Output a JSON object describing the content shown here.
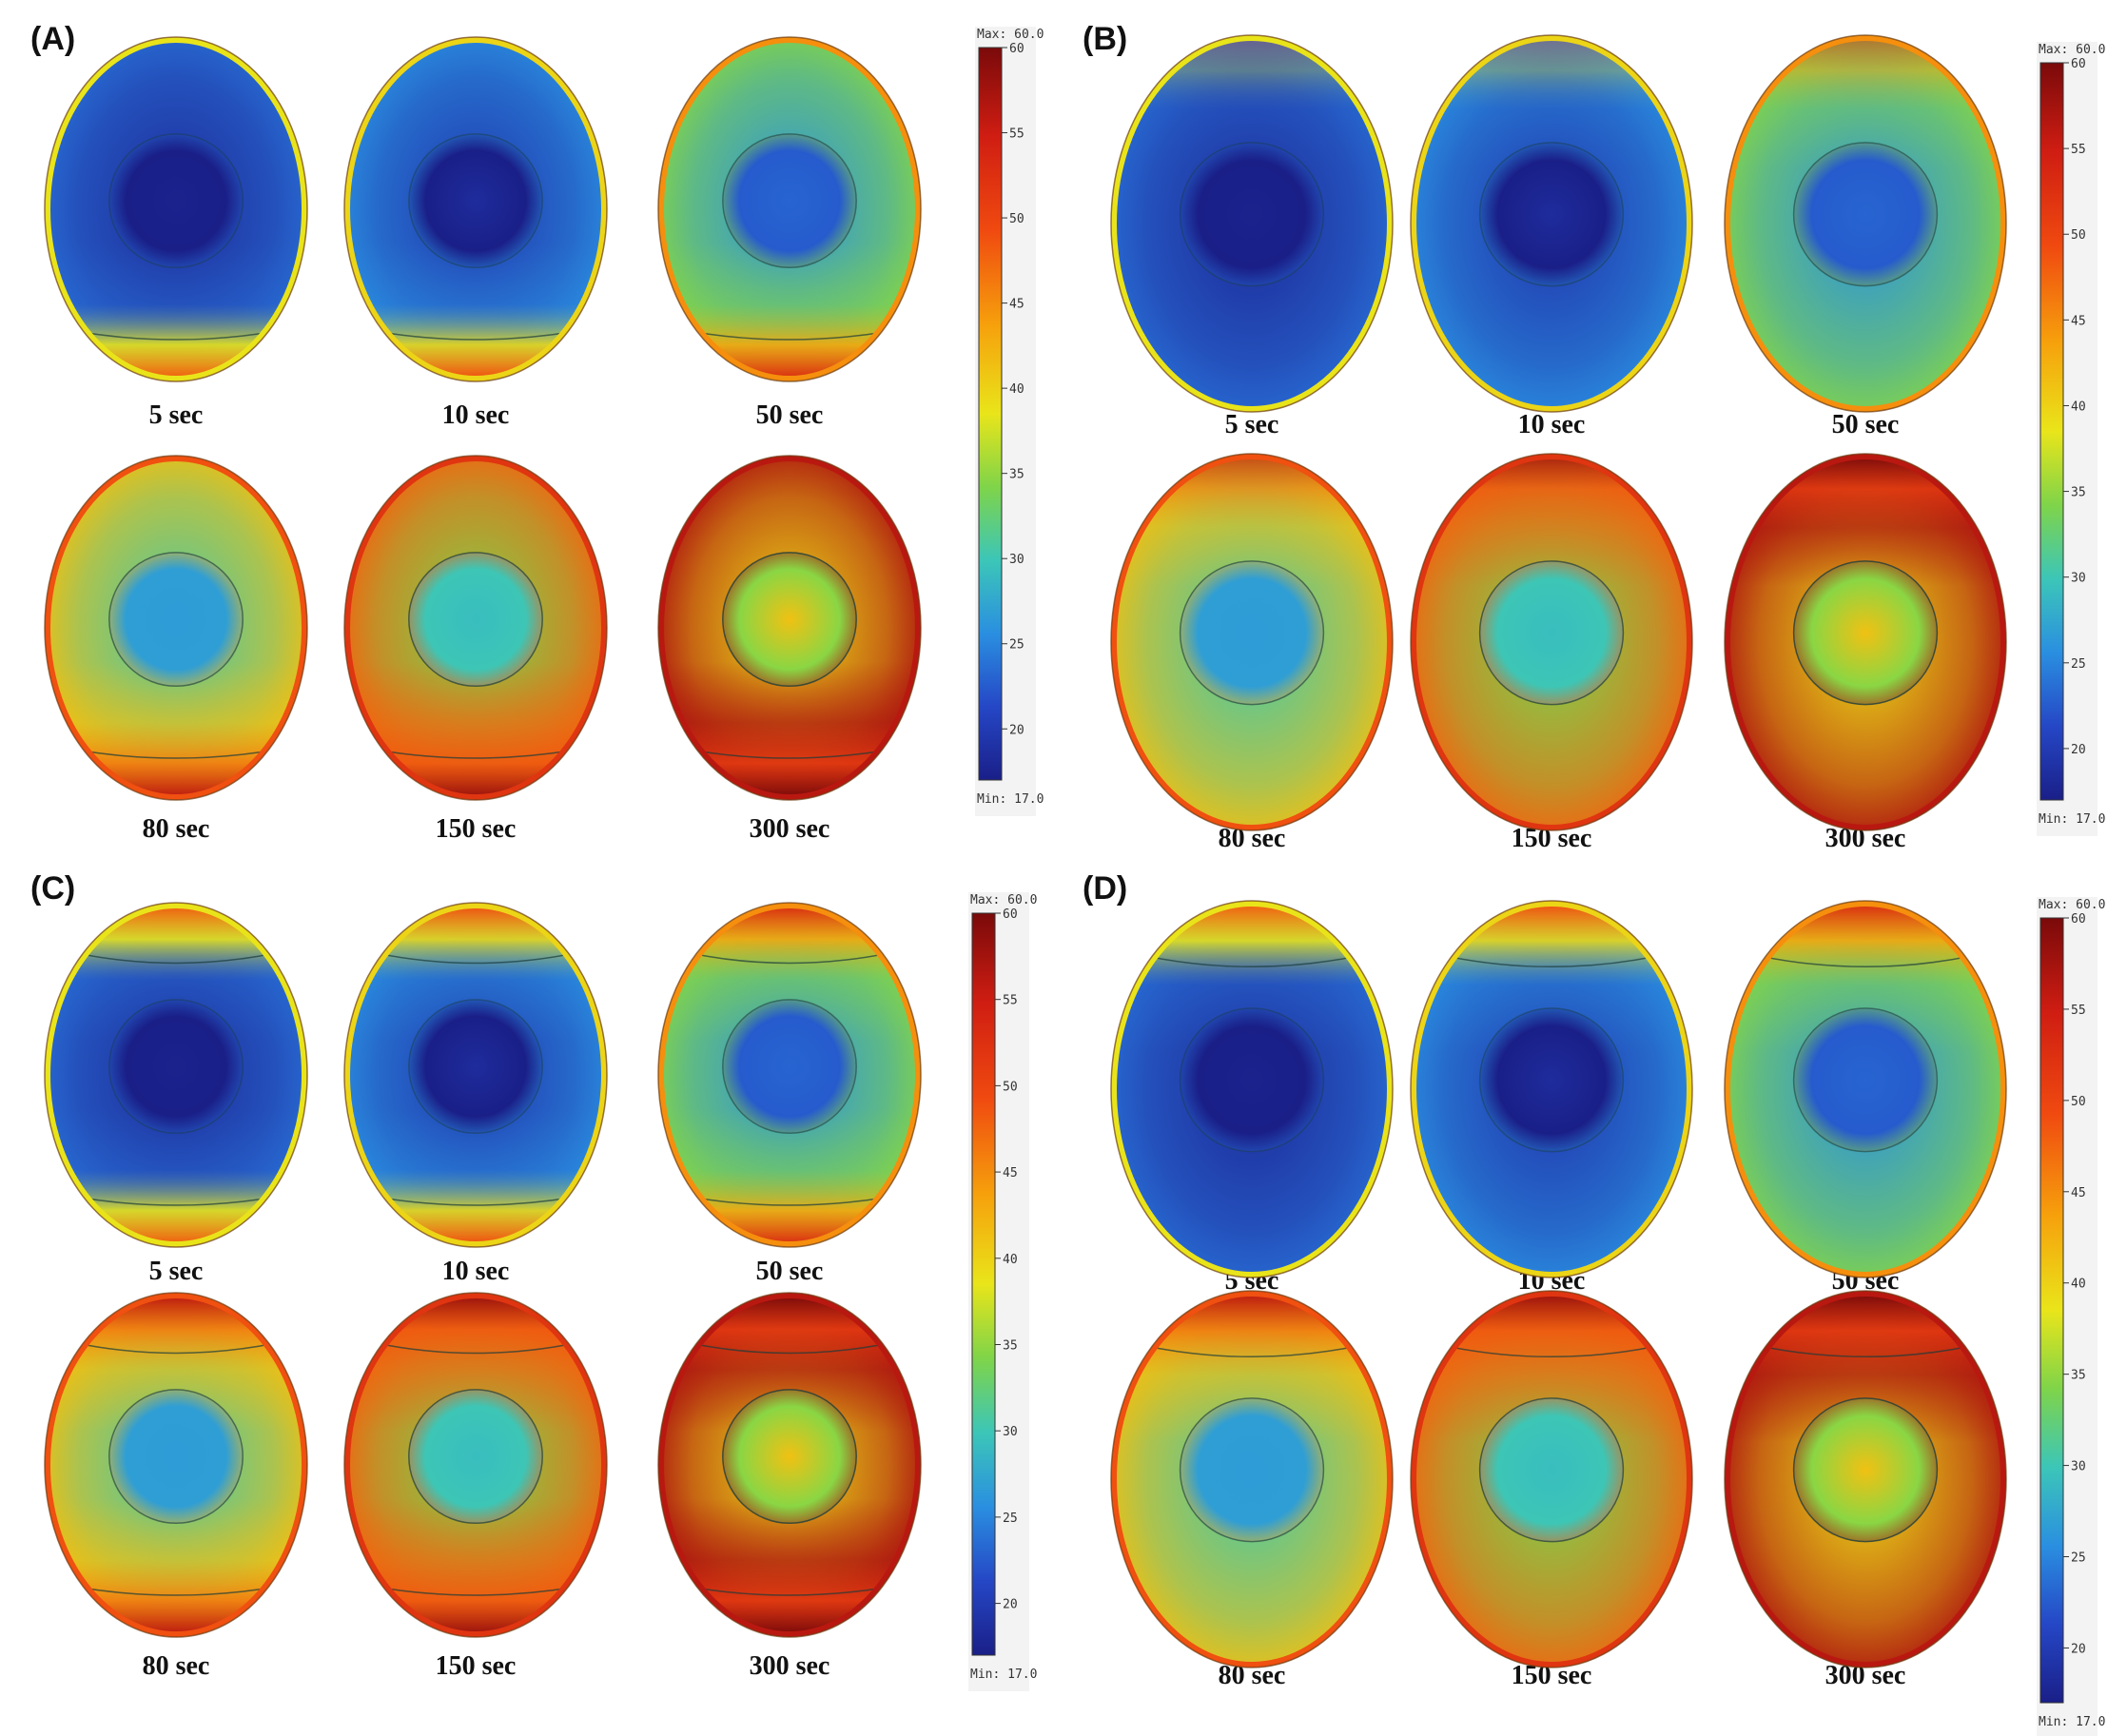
{
  "figure": {
    "panels": [
      {
        "label": "(A)",
        "heat_at": "bottom",
        "times": [
          "5 sec",
          "10 sec",
          "50 sec",
          "80 sec",
          "150 sec",
          "300 sec"
        ],
        "heat_levels": [
          0.02,
          0.08,
          0.35,
          0.55,
          0.7,
          0.92
        ]
      },
      {
        "label": "(B)",
        "heat_at": "rim",
        "times": [
          "5 sec",
          "10 sec",
          "50 sec",
          "80 sec",
          "150 sec",
          "300 sec"
        ],
        "heat_levels": [
          0.02,
          0.08,
          0.35,
          0.55,
          0.7,
          0.92
        ]
      },
      {
        "label": "(C)",
        "heat_at": "top-bottom",
        "times": [
          "5 sec",
          "10 sec",
          "50 sec",
          "80 sec",
          "150 sec",
          "300 sec"
        ],
        "heat_levels": [
          0.02,
          0.08,
          0.35,
          0.55,
          0.7,
          0.92
        ]
      },
      {
        "label": "(D)",
        "heat_at": "top",
        "times": [
          "5 sec",
          "10 sec",
          "50 sec",
          "80 sec",
          "150 sec",
          "300 sec"
        ],
        "heat_levels": [
          0.02,
          0.08,
          0.35,
          0.55,
          0.7,
          0.92
        ]
      }
    ],
    "colorbar": {
      "max_label": "Max: 60.0",
      "min_label": "Min: 17.0",
      "min": 17,
      "max": 60,
      "ticks": [
        "60",
        "55",
        "50",
        "45",
        "40",
        "35",
        "30",
        "25",
        "20"
      ],
      "colors": [
        "#7a0a0a",
        "#cf1d12",
        "#f04a10",
        "#f6a10c",
        "#e9e51a",
        "#7fd449",
        "#3cc6b8",
        "#2a8fe0",
        "#2547c6",
        "#1a1f88"
      ]
    }
  }
}
